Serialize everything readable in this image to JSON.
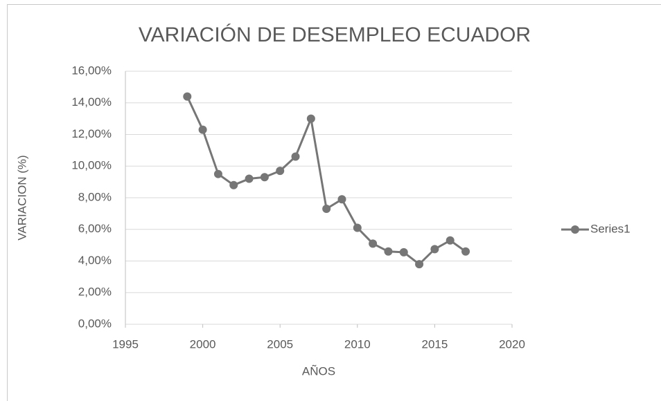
{
  "chart_data": {
    "type": "line",
    "title": "VARIACIÓN DE DESEMPLEO ECUADOR",
    "x_label": "AÑOS",
    "y_label": "VARIACION (%)",
    "x": [
      1999,
      2000,
      2001,
      2002,
      2003,
      2004,
      2005,
      2006,
      2007,
      2008,
      2009,
      2010,
      2011,
      2012,
      2013,
      2014,
      2015,
      2016,
      2017
    ],
    "series": [
      {
        "name": "Series1",
        "color": "#767676",
        "values": [
          14.4,
          12.3,
          9.5,
          8.8,
          9.2,
          9.3,
          9.7,
          10.6,
          13.0,
          7.3,
          7.9,
          6.1,
          5.1,
          4.6,
          4.55,
          3.8,
          4.75,
          5.3,
          4.6
        ]
      }
    ],
    "xlim": [
      1995,
      2020
    ],
    "xticks": [
      1995,
      2000,
      2005,
      2010,
      2015,
      2020
    ],
    "ylim": [
      0,
      16
    ],
    "yticks": [
      {
        "value": 0,
        "label": "0,00%"
      },
      {
        "value": 2,
        "label": "2,00%"
      },
      {
        "value": 4,
        "label": "4,00%"
      },
      {
        "value": 6,
        "label": "6,00%"
      },
      {
        "value": 8,
        "label": "8,00%"
      },
      {
        "value": 10,
        "label": "10,00%"
      },
      {
        "value": 12,
        "label": "12,00%"
      },
      {
        "value": 14,
        "label": "14,00%"
      },
      {
        "value": 16,
        "label": "16,00%"
      }
    ],
    "grid": true,
    "legend": "right"
  }
}
